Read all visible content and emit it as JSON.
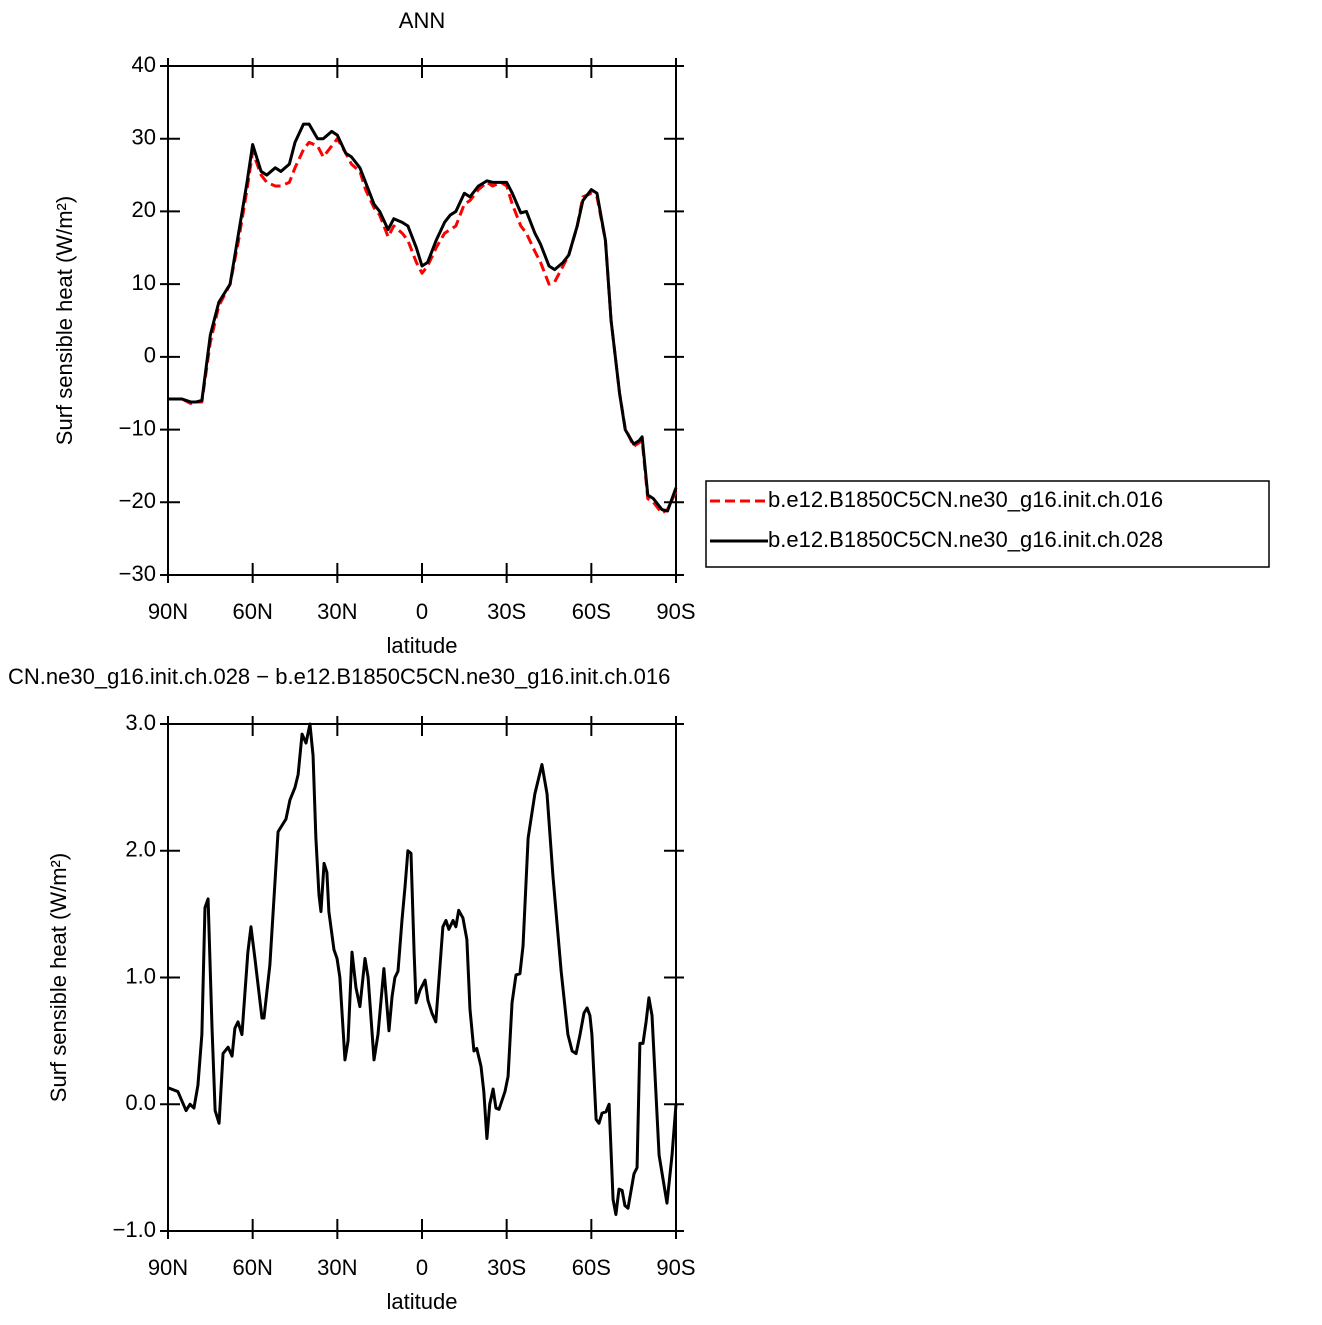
{
  "chart_data": [
    {
      "type": "line",
      "title": "ANN",
      "xlabel": "latitude",
      "ylabel": "Surf sensible heat (W/m²)",
      "x": [
        90,
        85,
        82,
        80,
        78,
        75,
        72,
        68,
        65,
        62,
        60,
        57,
        55,
        52,
        50,
        47,
        45,
        42,
        40,
        37,
        35,
        32,
        30,
        27,
        25,
        22,
        20,
        17,
        15,
        12,
        10,
        7,
        5,
        2,
        0,
        -2,
        -5,
        -8,
        -10,
        -12,
        -15,
        -17,
        -20,
        -23,
        -25,
        -28,
        -30,
        -32,
        -35,
        -37,
        -40,
        -42,
        -45,
        -47,
        -50,
        -52,
        -55,
        -57,
        -60,
        -62,
        -65,
        -67,
        -70,
        -72,
        -75,
        -77,
        -78,
        -80,
        -82,
        -85,
        -87,
        -90
      ],
      "series": [
        {
          "name": "b.e12.B1850C5CN.ne30_g16.init.ch.016",
          "color": "#ff0000",
          "style": "dashed",
          "values": [
            -5.8,
            -5.8,
            -6.4,
            -6.2,
            -6.2,
            2,
            7,
            10,
            16,
            23,
            28.2,
            25,
            24,
            23.5,
            23.5,
            24,
            26,
            28.5,
            29.5,
            29,
            27.5,
            29,
            30,
            28,
            26.5,
            25.5,
            23,
            20.5,
            19.5,
            16.5,
            18,
            17,
            16,
            13,
            11.5,
            12.5,
            15,
            17,
            17.5,
            18,
            21,
            21.5,
            23,
            24,
            23.5,
            24,
            23.5,
            21,
            18,
            17,
            14.5,
            13,
            10,
            10.3,
            12.5,
            14,
            18,
            22,
            22.5,
            22,
            16,
            5,
            -5,
            -9.8,
            -12.3,
            -11.8,
            -11.5,
            -19.5,
            -20,
            -21.5,
            -21,
            -18.5
          ]
        },
        {
          "name": "b.e12.B1850C5CN.ne30_g16.init.ch.028",
          "color": "#000000",
          "style": "solid",
          "values": [
            -5.8,
            -5.8,
            -6.2,
            -6.2,
            -6,
            3,
            7.5,
            10,
            17,
            24,
            29.2,
            25.5,
            25,
            26,
            25.5,
            26.5,
            29.5,
            32,
            32,
            30,
            30,
            31,
            30.5,
            28,
            27.5,
            26,
            24,
            21,
            20,
            17.5,
            19,
            18.5,
            18,
            15,
            12.5,
            13,
            16,
            18.5,
            19.5,
            20,
            22.5,
            22,
            23.5,
            24.2,
            24,
            24,
            24,
            22.5,
            19.8,
            20,
            17,
            15.5,
            12.5,
            12,
            13,
            14,
            18,
            21.5,
            23,
            22.5,
            16,
            5,
            -5,
            -10,
            -12,
            -11.5,
            -11,
            -19,
            -19.5,
            -21,
            -21.2,
            -18
          ]
        }
      ],
      "xlim": [
        90,
        -90
      ],
      "xticks": [
        {
          "value": 90,
          "label": "90N"
        },
        {
          "value": 60,
          "label": "60N"
        },
        {
          "value": 30,
          "label": "30N"
        },
        0,
        {
          "value": -30,
          "label": "30S"
        },
        {
          "value": -60,
          "label": "60S"
        },
        {
          "value": -90,
          "label": "90S"
        }
      ],
      "ylim": [
        -30,
        40
      ],
      "yticks": [
        {
          "value": -30,
          "label": "−30"
        },
        {
          "value": -20,
          "label": "−20"
        },
        {
          "value": -10,
          "label": "−10"
        },
        0,
        10,
        20,
        30,
        40
      ],
      "legend": "right"
    },
    {
      "type": "line",
      "title": "CN.ne30_g16.init.ch.028 − b.e12.B1850C5CN.ne30_g16.init.ch.016",
      "xlabel": "latitude",
      "ylabel": "Surf sensible heat (W/m²)",
      "x": [
        90,
        86.5,
        83.6,
        82.2,
        80.8,
        79.4,
        78,
        76.9,
        75.8,
        74.4,
        73.3,
        71.9,
        70.5,
        68.7,
        67.3,
        66.3,
        65.2,
        63.8,
        61.7,
        60.6,
        59.2,
        56.7,
        56,
        53.9,
        51,
        48.2,
        46.8,
        45,
        43.9,
        42.5,
        41.1,
        39.7,
        38.6,
        37.6,
        36.5,
        35.8,
        34.7,
        33.7,
        33,
        31.2,
        30.1,
        29.1,
        27.3,
        26.2,
        24.8,
        23.4,
        22,
        20.2,
        19.1,
        17,
        15.6,
        13.5,
        11.7,
        10.6,
        9.6,
        8.5,
        7.1,
        6,
        5,
        3.9,
        2.8,
        2.1,
        0.7,
        -1.1,
        -2.1,
        -3.5,
        -4.9,
        -6.4,
        -7.4,
        -8.5,
        -9.5,
        -11,
        -12,
        -13,
        -14.5,
        -15.9,
        -17,
        -18.4,
        -19.4,
        -20.9,
        -21.9,
        -23,
        -24,
        -25.2,
        -26.2,
        -27.3,
        -29.4,
        -30.5,
        -31.9,
        -33.3,
        -34.7,
        -35.8,
        -37.6,
        -40,
        -42.5,
        -44.3,
        -46.4,
        -49.3,
        -51.7,
        -53.2,
        -54.6,
        -56,
        -57.4,
        -58.5,
        -59.5,
        -60.2,
        -61.7,
        -62.7,
        -63.8,
        -65.2,
        -66.3,
        -67.7,
        -68.7,
        -69.8,
        -70.9,
        -71.9,
        -73,
        -75.1,
        -76.2,
        -77.2,
        -78.3,
        -79.4,
        -80.4,
        -81.5,
        -84,
        -86.8,
        -88.6,
        -90
      ],
      "series": [
        {
          "color": "#000000",
          "style": "solid",
          "values": [
            0.13,
            0.1,
            -0.05,
            0,
            -0.03,
            0.15,
            0.55,
            1.55,
            1.62,
            0.6,
            -0.05,
            -0.15,
            0.4,
            0.45,
            0.38,
            0.6,
            0.65,
            0.55,
            1.2,
            1.4,
            1.15,
            0.68,
            0.68,
            1.1,
            2.15,
            2.25,
            2.4,
            2.5,
            2.6,
            2.92,
            2.85,
            3,
            2.75,
            2.1,
            1.65,
            1.52,
            1.9,
            1.83,
            1.52,
            1.22,
            1.15,
            1,
            0.35,
            0.5,
            1.2,
            0.92,
            0.77,
            1.15,
            1,
            0.35,
            0.55,
            1.07,
            0.58,
            0.85,
            1,
            1.05,
            1.45,
            1.72,
            2,
            1.98,
            1.2,
            0.8,
            0.9,
            0.98,
            0.82,
            0.72,
            0.65,
            1.1,
            1.4,
            1.45,
            1.38,
            1.45,
            1.4,
            1.53,
            1.47,
            1.3,
            0.75,
            0.42,
            0.44,
            0.3,
            0.1,
            -0.27,
            0,
            0.12,
            -0.03,
            -0.04,
            0.1,
            0.22,
            0.8,
            1.02,
            1.03,
            1.25,
            2.1,
            2.45,
            2.68,
            2.45,
            1.8,
            1.05,
            0.55,
            0.42,
            0.4,
            0.55,
            0.72,
            0.76,
            0.7,
            0.55,
            -0.12,
            -0.15,
            -0.07,
            -0.06,
            0,
            -0.75,
            -0.87,
            -0.67,
            -0.68,
            -0.8,
            -0.82,
            -0.55,
            -0.5,
            0.48,
            0.48,
            0.65,
            0.84,
            0.7,
            -0.4,
            -0.78,
            -0.4,
            0
          ]
        }
      ],
      "xlim": [
        90,
        -90
      ],
      "xticks": [
        {
          "value": 90,
          "label": "90N"
        },
        {
          "value": 60,
          "label": "60N"
        },
        {
          "value": 30,
          "label": "30N"
        },
        0,
        {
          "value": -30,
          "label": "30S"
        },
        {
          "value": -60,
          "label": "60S"
        },
        {
          "value": -90,
          "label": "90S"
        }
      ],
      "ylim": [
        -1,
        3
      ],
      "yticks": [
        {
          "value": -1,
          "label": "−1.0"
        },
        {
          "value": 0,
          "label": "0.0"
        },
        {
          "value": 1,
          "label": "1.0"
        },
        {
          "value": 2,
          "label": "2.0"
        },
        {
          "value": 3,
          "label": "3.0"
        }
      ]
    }
  ]
}
